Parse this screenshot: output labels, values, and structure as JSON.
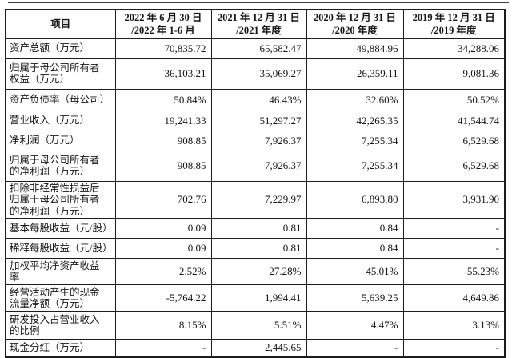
{
  "colors": {
    "text": "#151515",
    "border": "#1c1c1c",
    "background": "#ffffff"
  },
  "table": {
    "header": {
      "item_label": "项目",
      "periods": [
        {
          "line1": "2022 年 6 月 30 日",
          "line2": "/2022 年 1-6 月"
        },
        {
          "line1": "2021 年 12 月 31 日",
          "line2": "/2021 年度"
        },
        {
          "line1": "2020 年 12 月 31 日",
          "line2": "/2020 年度"
        },
        {
          "line1": "2019 年 12 月 31 日",
          "line2": "/2019 年度"
        }
      ]
    },
    "rows": [
      {
        "label": "资产总额（万元）",
        "values": [
          "70,835.72",
          "65,582.47",
          "49,884.96",
          "34,288.06"
        ]
      },
      {
        "label": "归属于母公司所有者\n权益（万元）",
        "values": [
          "36,103.21",
          "35,069.27",
          "26,359.11",
          "9,081.36"
        ]
      },
      {
        "label": "资产负债率（母公司）",
        "values": [
          "50.84%",
          "46.43%",
          "32.60%",
          "50.52%"
        ]
      },
      {
        "label": "营业收入（万元）",
        "values": [
          "19,241.33",
          "51,297.27",
          "42,265.35",
          "41,544.74"
        ]
      },
      {
        "label": "净利润（万元）",
        "values": [
          "908.85",
          "7,926.37",
          "7,255.34",
          "6,529.68"
        ]
      },
      {
        "label": "归属于母公司所有者\n的净利润（万元）",
        "values": [
          "908.85",
          "7,926.37",
          "7,255.34",
          "6,529.68"
        ]
      },
      {
        "label": "扣除非经常性损益后\n归属于母公司所有者\n的净利润（万元）",
        "values": [
          "702.76",
          "7,229.97",
          "6,893.80",
          "3,931.90"
        ]
      },
      {
        "label": "基本每股收益（元/股）",
        "values": [
          "0.09",
          "0.81",
          "0.84",
          "-"
        ]
      },
      {
        "label": "稀释每股收益（元/股）",
        "values": [
          "0.09",
          "0.81",
          "0.84",
          "-"
        ]
      },
      {
        "label": "加权平均净资产收益\n率",
        "values": [
          "2.52%",
          "27.28%",
          "45.01%",
          "55.23%"
        ]
      },
      {
        "label": "经营活动产生的现金\n流量净额（万元）",
        "values": [
          "-5,764.22",
          "1,994.41",
          "5,639.25",
          "4,649.86"
        ]
      },
      {
        "label": "研发投入占营业收入\n的比例",
        "values": [
          "8.15%",
          "5.51%",
          "4.47%",
          "3.13%"
        ]
      },
      {
        "label": "现金分红（万元）",
        "values": [
          "-",
          "2,445.65",
          "-",
          "-"
        ]
      }
    ]
  }
}
